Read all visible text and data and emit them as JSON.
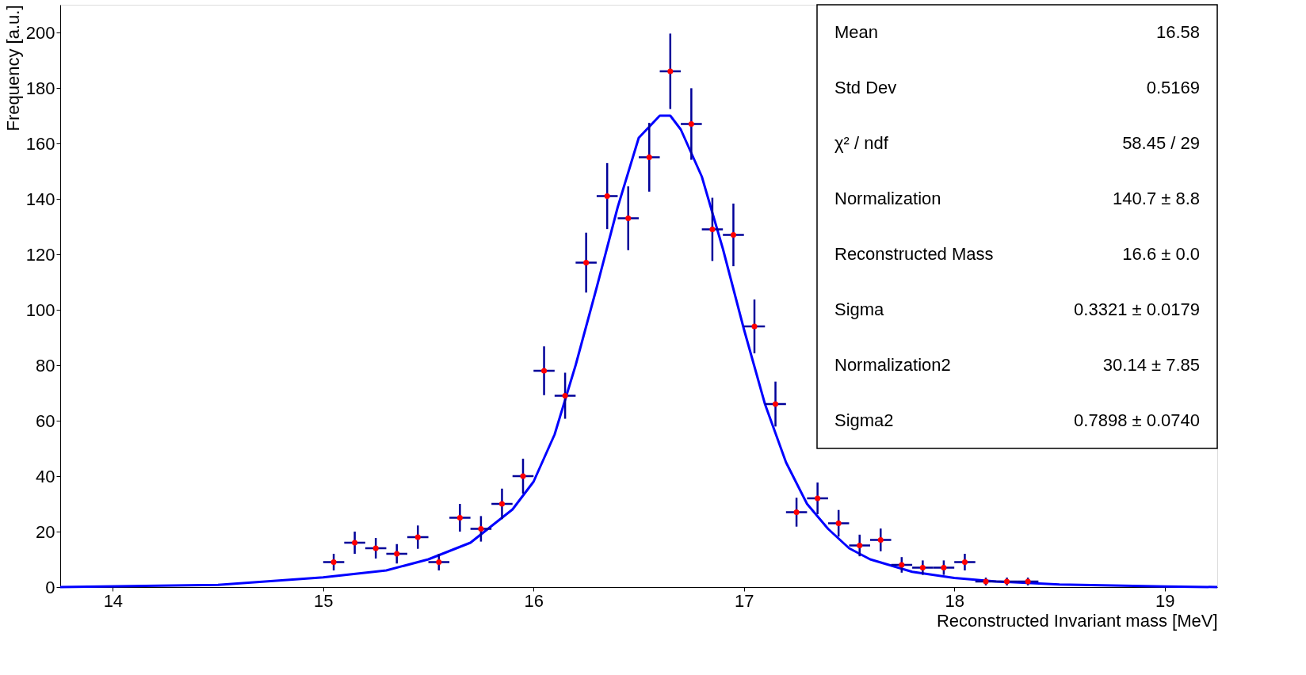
{
  "chart_data": {
    "type": "scatter",
    "xlabel": "Reconstructed Invariant mass [MeV]",
    "ylabel": "Frequency [a.u.]",
    "xlim": [
      13.75,
      19.25
    ],
    "ylim": [
      0,
      210
    ],
    "xticks": [
      14,
      15,
      16,
      17,
      18,
      19
    ],
    "yticks": [
      0,
      20,
      40,
      60,
      80,
      100,
      120,
      140,
      160,
      180,
      200
    ],
    "grid": false,
    "annotations": [
      "Mean",
      "16.58",
      "Std Dev",
      "0.5169",
      "χ² / ndf",
      "58.45 / 29",
      "Normalization",
      "140.7 ± 8.8",
      "Reconstructed Mass",
      "16.6 ± 0.0",
      "Sigma",
      "0.3321 ± 0.0179",
      "Normalization2",
      "30.14 ± 7.85",
      "Sigma2",
      "0.7898 ± 0.0740"
    ],
    "series": [
      {
        "marker": "circle",
        "color": "#ff0000",
        "x": [
          15.05,
          15.15,
          15.25,
          15.35,
          15.45,
          15.55,
          15.65,
          15.75,
          15.85,
          15.95,
          16.05,
          16.15,
          16.25,
          16.35,
          16.45,
          16.55,
          16.65,
          16.75,
          16.85,
          16.95,
          17.05,
          17.15,
          17.25,
          17.35,
          17.45,
          17.55,
          17.65,
          17.75,
          17.85,
          17.95,
          18.05,
          18.15,
          18.25,
          18.35
        ],
        "values": [
          9,
          16,
          14,
          12,
          18,
          9,
          25,
          21,
          30,
          40,
          78,
          69,
          117,
          141,
          133,
          155,
          186,
          167,
          129,
          127,
          94,
          66,
          27,
          32,
          23,
          15,
          17,
          8,
          7,
          7,
          9,
          2,
          2,
          2
        ],
        "errors": [
          3,
          4,
          3.7,
          3.5,
          4.2,
          3,
          5,
          4.6,
          5.5,
          6.3,
          8.8,
          8.3,
          10.8,
          11.9,
          11.5,
          12.4,
          13.6,
          12.9,
          11.4,
          11.3,
          9.7,
          8.1,
          5.2,
          5.7,
          4.8,
          3.9,
          4.1,
          2.8,
          2.6,
          2.6,
          3,
          1.4,
          1.4,
          1.4
        ],
        "xerrors": [
          0.05,
          0.05,
          0.05,
          0.05,
          0.05,
          0.05,
          0.05,
          0.05,
          0.05,
          0.05,
          0.05,
          0.05,
          0.05,
          0.05,
          0.05,
          0.05,
          0.05,
          0.05,
          0.05,
          0.05,
          0.05,
          0.05,
          0.05,
          0.05,
          0.05,
          0.05,
          0.05,
          0.05,
          0.05,
          0.05,
          0.05,
          0.05,
          0.05,
          0.05
        ]
      },
      {
        "type": "line",
        "marker": "none",
        "color": "#0000ff",
        "x": [
          13.75,
          14.5,
          15,
          15.3,
          15.5,
          15.7,
          15.9,
          16.0,
          16.1,
          16.2,
          16.3,
          16.4,
          16.5,
          16.6,
          16.65,
          16.7,
          16.8,
          16.9,
          17.0,
          17.1,
          17.2,
          17.3,
          17.4,
          17.5,
          17.6,
          17.8,
          18.0,
          18.2,
          18.5,
          19.0,
          19.25
        ],
        "values": [
          0,
          0.8,
          3.5,
          6,
          10,
          16,
          28,
          38,
          55,
          80,
          108,
          137,
          162,
          170,
          170,
          165,
          148,
          122,
          93,
          66,
          45,
          30,
          21,
          14,
          10,
          5.5,
          3.3,
          2,
          0.9,
          0.2,
          0
        ]
      }
    ]
  }
}
